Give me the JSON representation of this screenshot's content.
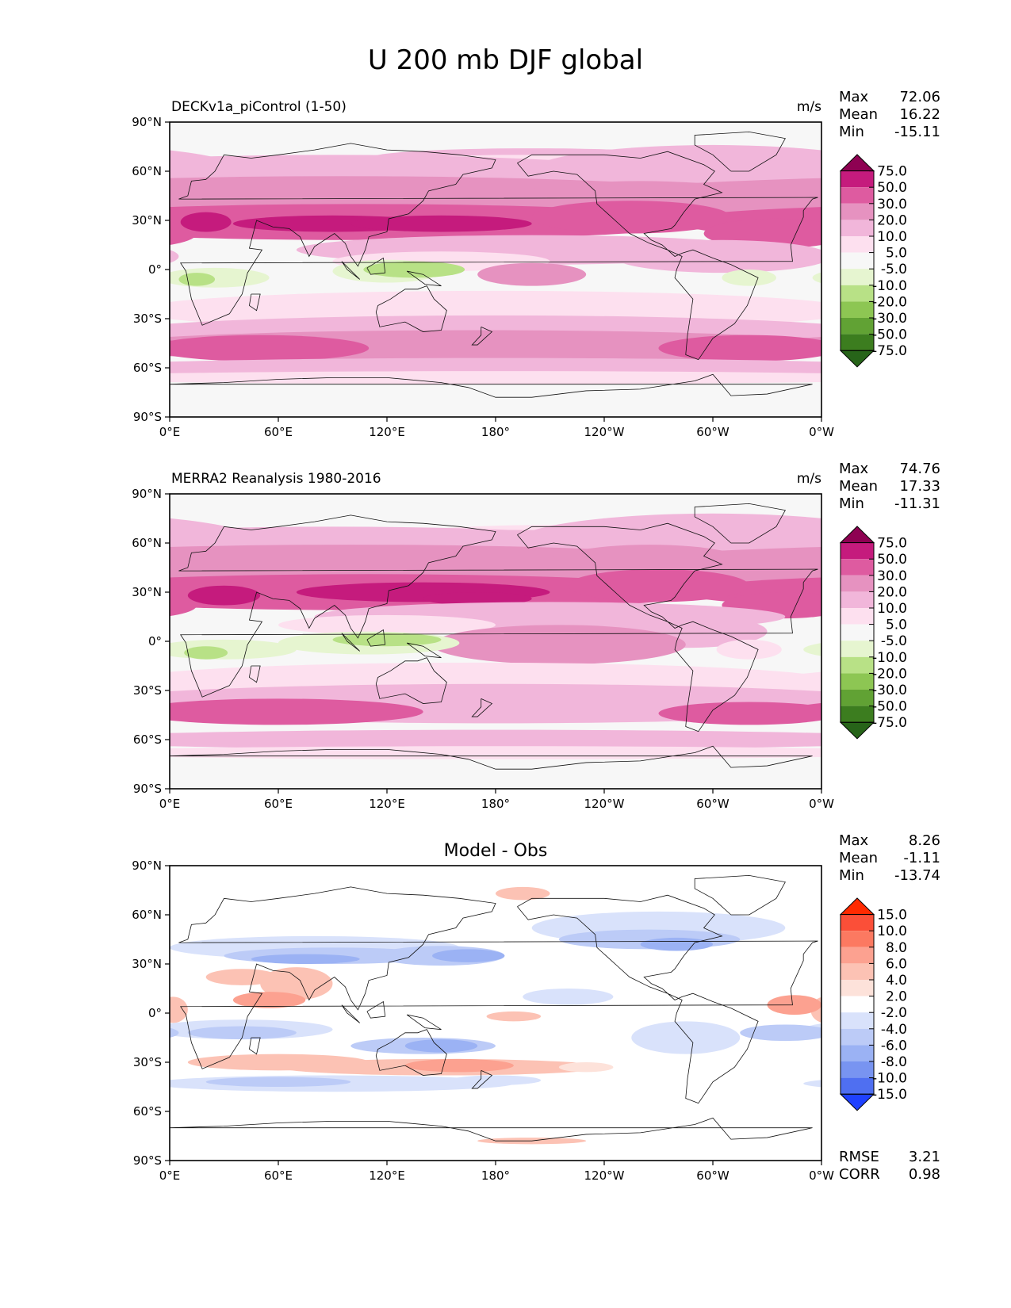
{
  "page": {
    "title": "U 200 mb DJF global"
  },
  "lat_ticks": [
    "90°N",
    "60°N",
    "30°N",
    "0°",
    "30°S",
    "60°S",
    "90°S"
  ],
  "lon_ticks": [
    "0°E",
    "60°E",
    "120°E",
    "180°",
    "120°W",
    "60°W",
    "0°W"
  ],
  "chart_data": [
    {
      "type": "heatmap",
      "title": "DECKv1a_piControl (1-50)",
      "units": "m/s",
      "stats": {
        "max": "72.06",
        "mean": "16.22",
        "min": "-15.11"
      },
      "stat_labels": [
        "Max",
        "Mean",
        "Min"
      ],
      "colorbar": {
        "levels": [
          "75.0",
          "50.0",
          "30.0",
          "20.0",
          "10.0",
          "5.0",
          "-5.0",
          "-10.0",
          "-20.0",
          "-30.0",
          "-50.0",
          "-75.0"
        ],
        "colors": [
          "#8e0152",
          "#c51b7d",
          "#de5ba0",
          "#e692c0",
          "#f1b6da",
          "#fde0ef",
          "#f7f7f7",
          "#e6f5d0",
          "#b8e186",
          "#8dc653",
          "#61a234",
          "#3c7d1f",
          "#276419"
        ]
      },
      "xlim": [
        0,
        360
      ],
      "ylim": [
        -90,
        90
      ]
    },
    {
      "type": "heatmap",
      "title": "MERRA2 Reanalysis 1980-2016",
      "units": "m/s",
      "stats": {
        "max": "74.76",
        "mean": "17.33",
        "min": "-11.31"
      },
      "stat_labels": [
        "Max",
        "Mean",
        "Min"
      ],
      "colorbar": {
        "levels": [
          "75.0",
          "50.0",
          "30.0",
          "20.0",
          "10.0",
          "5.0",
          "-5.0",
          "-10.0",
          "-20.0",
          "-30.0",
          "-50.0",
          "-75.0"
        ],
        "colors": [
          "#8e0152",
          "#c51b7d",
          "#de5ba0",
          "#e692c0",
          "#f1b6da",
          "#fde0ef",
          "#f7f7f7",
          "#e6f5d0",
          "#b8e186",
          "#8dc653",
          "#61a234",
          "#3c7d1f",
          "#276419"
        ]
      },
      "xlim": [
        0,
        360
      ],
      "ylim": [
        -90,
        90
      ]
    },
    {
      "type": "heatmap",
      "title": "Model - Obs",
      "units": "",
      "stats": {
        "max": "8.26",
        "mean": "-1.11",
        "min": "-13.74"
      },
      "stat_labels": [
        "Max",
        "Mean",
        "Min"
      ],
      "extra_stats": [
        {
          "label": "RMSE",
          "value": "3.21"
        },
        {
          "label": "CORR",
          "value": "0.98"
        }
      ],
      "colorbar": {
        "levels": [
          "15.0",
          "10.0",
          "8.0",
          "6.0",
          "4.0",
          "2.0",
          "-2.0",
          "-4.0",
          "-6.0",
          "-8.0",
          "-10.0",
          "-15.0"
        ],
        "colors": [
          "#ff2a00",
          "#fb4f38",
          "#fc7961",
          "#fca190",
          "#fcc2b4",
          "#fde2da",
          "#ffffff",
          "#d9e2fb",
          "#bccbf7",
          "#9bb2f4",
          "#7894f1",
          "#4f6ff1",
          "#1f41ff"
        ]
      },
      "xlim": [
        0,
        360
      ],
      "ylim": [
        -90,
        90
      ]
    }
  ]
}
